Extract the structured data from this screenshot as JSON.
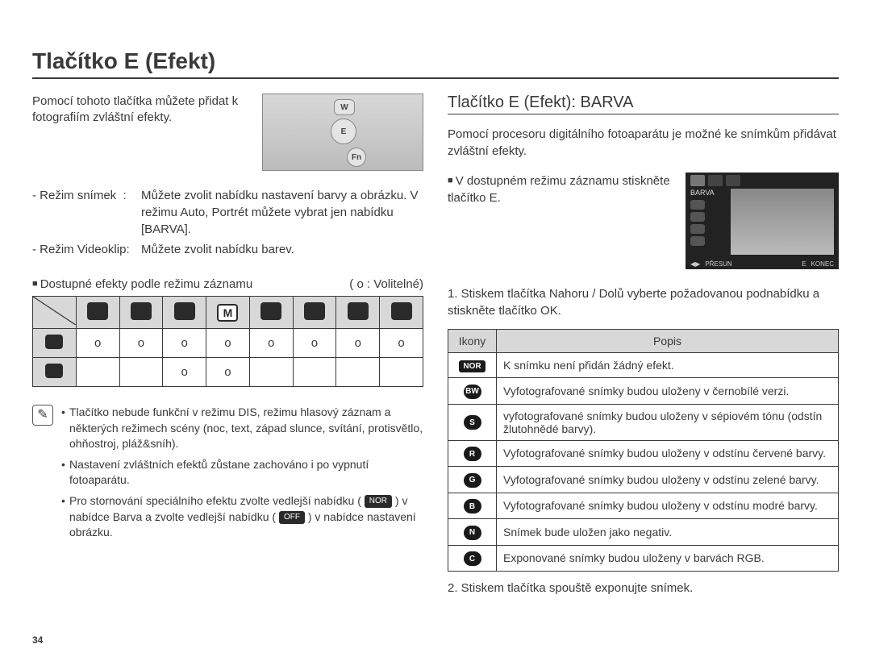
{
  "page": {
    "title": "Tlačítko E (Efekt)",
    "number": "34"
  },
  "left": {
    "intro": "Pomocí tohoto tlačítka můžete přidat k fotografiím zvláštní efekty.",
    "cam_labels": {
      "w": "W",
      "e": "E",
      "fn": "Fn"
    },
    "modes": [
      {
        "label": "- Režim snímek",
        "sep": ":",
        "text": "Můžete zvolit nabídku nastavení barvy a obrázku. V režimu Auto, Portrét můžete vybrat jen nabídku [BARVA]."
      },
      {
        "label": "- Režim Videoklip",
        "sep": ":",
        "text": "Můžete zvolit nabídku barev."
      }
    ],
    "avail_heading": "Dostupné efekty podle režimu záznamu",
    "optional_legend": "( o : Volitelné)",
    "modes_table": {
      "row1": [
        "o",
        "o",
        "o",
        "o",
        "o",
        "o",
        "o",
        "o"
      ],
      "row2": [
        "",
        "",
        "o",
        "o",
        "",
        "",
        "",
        ""
      ]
    },
    "notes": [
      "Tlačítko nebude funkční v režimu DIS, režimu hlasový záznam a některých režimech scény (noc, text, západ slunce, svítání, protisvětlo, ohňostroj, pláž&sníh).",
      "Nastavení zvláštních efektů zůstane zachováno i po vypnutí fotoaparátu.",
      "Pro stornování speciálního efektu zvolte vedlejší nabídku ( <NOR> ) v nabídce Barva a zvolte vedlejší nabídku ( <OFF> ) v nabídce nastavení obrázku."
    ],
    "note_badges": {
      "nor": "NOR",
      "off": "OFF"
    }
  },
  "right": {
    "section_title": "Tlačítko E (Efekt): BARVA",
    "intro": "Pomocí procesoru digitálního fotoaparátu je možné ke snímkům přidávat zvláštní efekty.",
    "step0": "V dostupném režimu záznamu stiskněte tlačítko E.",
    "screen": {
      "label": "BARVA",
      "bottom": {
        "move_icon": "◀▶",
        "move": "PŘESUN",
        "e": "E",
        "exit": "KONEC"
      }
    },
    "step1": "1. Stiskem tlačítka Nahoru / Dolů vyberte požadovanou podnabídku a stiskněte tlačítko OK.",
    "table": {
      "headers": {
        "icon": "Ikony",
        "desc": "Popis"
      },
      "rows": [
        {
          "badge_type": "rect",
          "badge": "NOR",
          "desc": "K snímku není přidán žádný efekt."
        },
        {
          "badge_type": "circ",
          "badge": "BW",
          "desc": "Vyfotografované snímky budou uloženy v černobílé verzi."
        },
        {
          "badge_type": "circ",
          "badge": "S",
          "desc": "vyfotografované snímky budou uloženy v sépiovém tónu (odstín žlutohnědé barvy)."
        },
        {
          "badge_type": "circ",
          "badge": "R",
          "desc": "Vyfotografované snímky budou uloženy v odstínu červené barvy."
        },
        {
          "badge_type": "circ",
          "badge": "G",
          "desc": "Vyfotografované snímky budou uloženy v odstínu zelené barvy."
        },
        {
          "badge_type": "circ",
          "badge": "B",
          "desc": "Vyfotografované snímky budou uloženy v odstínu modré barvy."
        },
        {
          "badge_type": "circ",
          "badge": "N",
          "desc": "Snímek bude uložen jako negativ."
        },
        {
          "badge_type": "circ",
          "badge": "C",
          "desc": "Exponované snímky budou uloženy v barvách RGB."
        }
      ]
    },
    "step2": "2. Stiskem tlačítka spouště exponujte snímek."
  },
  "colors": {
    "text": "#3a3a3a",
    "rule": "#3a3a3a",
    "th_bg": "#d8d8d8",
    "badge_bg": "#1a1a1a"
  }
}
